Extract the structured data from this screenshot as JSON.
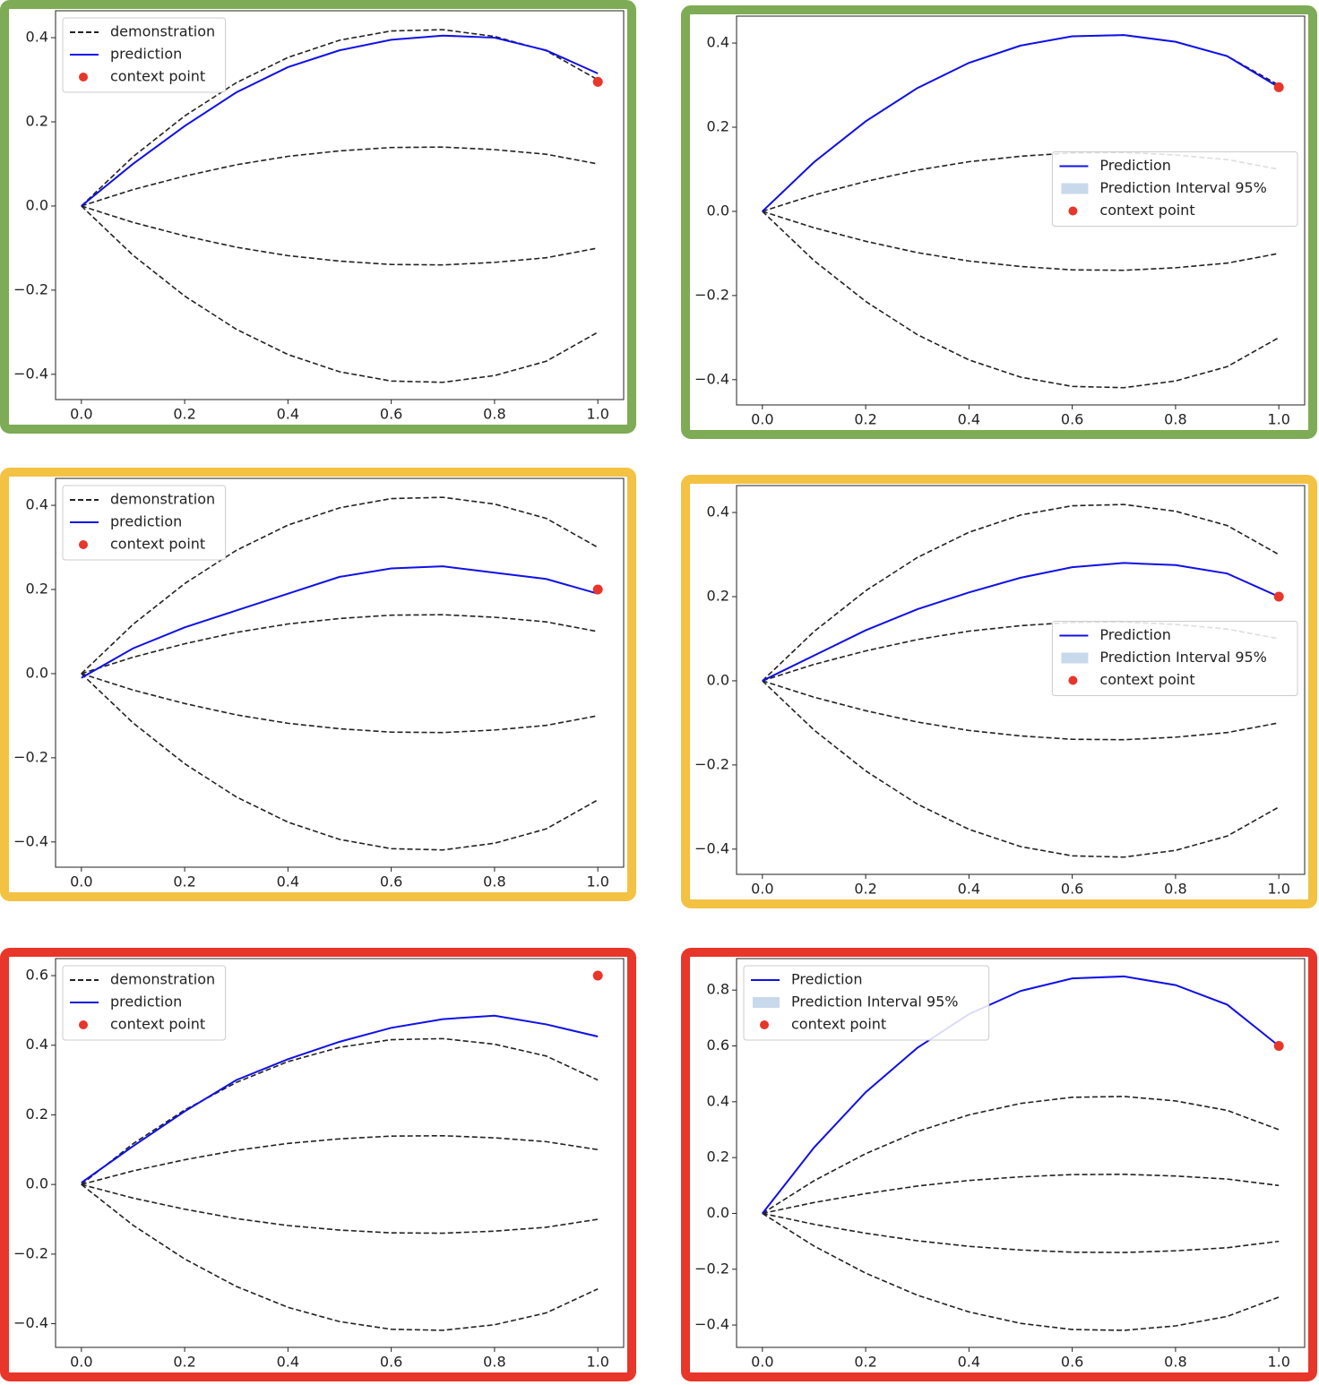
{
  "chart_data": [
    {
      "type": "line",
      "frame_color": "#7eab55",
      "legend": "upper left",
      "x": [
        0,
        0.1,
        0.2,
        0.3,
        0.4,
        0.5,
        0.6,
        0.7,
        0.8,
        0.9,
        1.0
      ],
      "xlim": [
        -0.05,
        1.05
      ],
      "ylim": [
        -0.46,
        0.464
      ],
      "xticks": [
        {
          "value": 0,
          "label": "0.0"
        },
        0.2,
        0.4,
        0.6,
        0.8,
        {
          "value": 1,
          "label": "1.0"
        }
      ],
      "yticks": [
        {
          "value": -0.4,
          "label": "−0.4"
        },
        {
          "value": -0.2,
          "label": "−0.2"
        },
        {
          "value": 0,
          "label": "0.0"
        },
        0.2,
        0.4
      ],
      "series": [
        {
          "name": "demonstration",
          "kind": "line",
          "linestyle": "dashed",
          "color": "#222222",
          "values": [
            0,
            0.117,
            0.214,
            0.293,
            0.353,
            0.394,
            0.416,
            0.419,
            0.403,
            0.369,
            0.3
          ]
        },
        {
          "kind": "line",
          "linestyle": "dashed",
          "color": "#222222",
          "values": [
            0,
            0.039,
            0.071,
            0.098,
            0.118,
            0.131,
            0.139,
            0.14,
            0.134,
            0.123,
            0.1
          ]
        },
        {
          "kind": "line",
          "linestyle": "dashed",
          "color": "#222222",
          "values": [
            0,
            -0.039,
            -0.071,
            -0.098,
            -0.118,
            -0.131,
            -0.139,
            -0.14,
            -0.134,
            -0.123,
            -0.1
          ]
        },
        {
          "kind": "line",
          "linestyle": "dashed",
          "color": "#222222",
          "values": [
            0,
            -0.117,
            -0.214,
            -0.293,
            -0.353,
            -0.394,
            -0.416,
            -0.419,
            -0.403,
            -0.369,
            -0.3
          ]
        },
        {
          "name": "prediction",
          "kind": "line",
          "color": "#1010e8",
          "values": [
            0,
            0.1,
            0.19,
            0.27,
            0.33,
            0.37,
            0.395,
            0.405,
            0.4,
            0.37,
            0.315
          ]
        },
        {
          "name": "context point",
          "kind": "scatter",
          "color": "#e8362a",
          "x": [
            1.0
          ],
          "values": [
            0.295
          ]
        }
      ]
    },
    {
      "type": "line",
      "frame_color": "#7eab55",
      "legend": "center right",
      "x": [
        0,
        0.1,
        0.2,
        0.3,
        0.4,
        0.5,
        0.6,
        0.7,
        0.8,
        0.9,
        1.0
      ],
      "xlim": [
        -0.05,
        1.05
      ],
      "ylim": [
        -0.46,
        0.464
      ],
      "xticks": [
        {
          "value": 0,
          "label": "0.0"
        },
        0.2,
        0.4,
        0.6,
        0.8,
        {
          "value": 1,
          "label": "1.0"
        }
      ],
      "yticks": [
        {
          "value": -0.4,
          "label": "−0.4"
        },
        {
          "value": -0.2,
          "label": "−0.2"
        },
        {
          "value": 0,
          "label": "0.0"
        },
        0.2,
        0.4
      ],
      "series": [
        {
          "kind": "line",
          "linestyle": "dashed",
          "color": "#222222",
          "values": [
            0,
            0.117,
            0.214,
            0.293,
            0.353,
            0.394,
            0.416,
            0.419,
            0.403,
            0.369,
            0.3
          ]
        },
        {
          "kind": "line",
          "linestyle": "dashed",
          "color": "#222222",
          "values": [
            0,
            0.039,
            0.071,
            0.098,
            0.118,
            0.131,
            0.139,
            0.14,
            0.134,
            0.123,
            0.1
          ]
        },
        {
          "kind": "line",
          "linestyle": "dashed",
          "color": "#222222",
          "values": [
            0,
            -0.039,
            -0.071,
            -0.098,
            -0.118,
            -0.131,
            -0.139,
            -0.14,
            -0.134,
            -0.123,
            -0.1
          ]
        },
        {
          "kind": "line",
          "linestyle": "dashed",
          "color": "#222222",
          "values": [
            0,
            -0.117,
            -0.214,
            -0.293,
            -0.353,
            -0.394,
            -0.416,
            -0.419,
            -0.403,
            -0.369,
            -0.3
          ]
        },
        {
          "name": "Prediction",
          "kind": "line",
          "color": "#1010e8",
          "values": [
            0,
            0.117,
            0.214,
            0.293,
            0.353,
            0.394,
            0.416,
            0.419,
            0.403,
            0.369,
            0.295
          ]
        },
        {
          "name": "Prediction Interval 95%",
          "kind": "band",
          "color": "#c9d9ec",
          "lower": [
            0,
            0.117,
            0.214,
            0.293,
            0.353,
            0.394,
            0.416,
            0.419,
            0.403,
            0.369,
            0.295
          ],
          "upper": [
            0,
            0.117,
            0.214,
            0.293,
            0.353,
            0.394,
            0.416,
            0.419,
            0.403,
            0.369,
            0.295
          ]
        },
        {
          "name": "context point",
          "kind": "scatter",
          "color": "#e8362a",
          "x": [
            1.0
          ],
          "values": [
            0.295
          ]
        }
      ]
    },
    {
      "type": "line",
      "frame_color": "#f4c242",
      "legend": "upper left",
      "x": [
        0,
        0.1,
        0.2,
        0.3,
        0.4,
        0.5,
        0.6,
        0.7,
        0.8,
        0.9,
        1.0
      ],
      "xlim": [
        -0.05,
        1.05
      ],
      "ylim": [
        -0.46,
        0.464
      ],
      "xticks": [
        {
          "value": 0,
          "label": "0.0"
        },
        0.2,
        0.4,
        0.6,
        0.8,
        {
          "value": 1,
          "label": "1.0"
        }
      ],
      "yticks": [
        {
          "value": -0.4,
          "label": "−0.4"
        },
        {
          "value": -0.2,
          "label": "−0.2"
        },
        {
          "value": 0,
          "label": "0.0"
        },
        0.2,
        0.4
      ],
      "series": [
        {
          "name": "demonstration",
          "kind": "line",
          "linestyle": "dashed",
          "color": "#222222",
          "values": [
            0,
            0.117,
            0.214,
            0.293,
            0.353,
            0.394,
            0.416,
            0.419,
            0.403,
            0.369,
            0.3
          ]
        },
        {
          "kind": "line",
          "linestyle": "dashed",
          "color": "#222222",
          "values": [
            0,
            0.039,
            0.071,
            0.098,
            0.118,
            0.131,
            0.139,
            0.14,
            0.134,
            0.123,
            0.1
          ]
        },
        {
          "kind": "line",
          "linestyle": "dashed",
          "color": "#222222",
          "values": [
            0,
            -0.039,
            -0.071,
            -0.098,
            -0.118,
            -0.131,
            -0.139,
            -0.14,
            -0.134,
            -0.123,
            -0.1
          ]
        },
        {
          "kind": "line",
          "linestyle": "dashed",
          "color": "#222222",
          "values": [
            0,
            -0.117,
            -0.214,
            -0.293,
            -0.353,
            -0.394,
            -0.416,
            -0.419,
            -0.403,
            -0.369,
            -0.3
          ]
        },
        {
          "name": "prediction",
          "kind": "line",
          "color": "#1010e8",
          "values": [
            -0.01,
            0.06,
            0.11,
            0.15,
            0.19,
            0.23,
            0.25,
            0.255,
            0.24,
            0.225,
            0.19
          ]
        },
        {
          "name": "context point",
          "kind": "scatter",
          "color": "#e8362a",
          "x": [
            1.0
          ],
          "values": [
            0.2
          ]
        }
      ]
    },
    {
      "type": "line",
      "frame_color": "#f4c242",
      "legend": "center right",
      "x": [
        0,
        0.1,
        0.2,
        0.3,
        0.4,
        0.5,
        0.6,
        0.7,
        0.8,
        0.9,
        1.0
      ],
      "xlim": [
        -0.05,
        1.05
      ],
      "ylim": [
        -0.46,
        0.464
      ],
      "xticks": [
        {
          "value": 0,
          "label": "0.0"
        },
        0.2,
        0.4,
        0.6,
        0.8,
        {
          "value": 1,
          "label": "1.0"
        }
      ],
      "yticks": [
        {
          "value": -0.4,
          "label": "−0.4"
        },
        {
          "value": -0.2,
          "label": "−0.2"
        },
        {
          "value": 0,
          "label": "0.0"
        },
        0.2,
        0.4
      ],
      "series": [
        {
          "kind": "line",
          "linestyle": "dashed",
          "color": "#222222",
          "values": [
            0,
            0.117,
            0.214,
            0.293,
            0.353,
            0.394,
            0.416,
            0.419,
            0.403,
            0.369,
            0.3
          ]
        },
        {
          "kind": "line",
          "linestyle": "dashed",
          "color": "#222222",
          "values": [
            0,
            0.039,
            0.071,
            0.098,
            0.118,
            0.131,
            0.139,
            0.14,
            0.134,
            0.123,
            0.1
          ]
        },
        {
          "kind": "line",
          "linestyle": "dashed",
          "color": "#222222",
          "values": [
            0,
            -0.039,
            -0.071,
            -0.098,
            -0.118,
            -0.131,
            -0.139,
            -0.14,
            -0.134,
            -0.123,
            -0.1
          ]
        },
        {
          "kind": "line",
          "linestyle": "dashed",
          "color": "#222222",
          "values": [
            0,
            -0.117,
            -0.214,
            -0.293,
            -0.353,
            -0.394,
            -0.416,
            -0.419,
            -0.403,
            -0.369,
            -0.3
          ]
        },
        {
          "name": "Prediction",
          "kind": "line",
          "color": "#1010e8",
          "values": [
            0,
            0.06,
            0.12,
            0.17,
            0.21,
            0.245,
            0.27,
            0.28,
            0.275,
            0.255,
            0.2
          ]
        },
        {
          "name": "Prediction Interval 95%",
          "kind": "band",
          "color": "#c9d9ec",
          "lower": [
            0,
            0.06,
            0.12,
            0.17,
            0.21,
            0.245,
            0.27,
            0.28,
            0.275,
            0.255,
            0.2
          ],
          "upper": [
            0,
            0.06,
            0.12,
            0.17,
            0.21,
            0.245,
            0.27,
            0.28,
            0.275,
            0.255,
            0.2
          ]
        },
        {
          "name": "context point",
          "kind": "scatter",
          "color": "#e8362a",
          "x": [
            1.0
          ],
          "values": [
            0.2
          ]
        }
      ]
    },
    {
      "type": "line",
      "frame_color": "#e8362a",
      "legend": "upper left",
      "x": [
        0,
        0.1,
        0.2,
        0.3,
        0.4,
        0.5,
        0.6,
        0.7,
        0.8,
        0.9,
        1.0
      ],
      "xlim": [
        -0.05,
        1.05
      ],
      "ylim": [
        -0.468,
        0.649
      ],
      "xticks": [
        {
          "value": 0,
          "label": "0.0"
        },
        0.2,
        0.4,
        0.6,
        0.8,
        {
          "value": 1,
          "label": "1.0"
        }
      ],
      "yticks": [
        {
          "value": -0.4,
          "label": "−0.4"
        },
        {
          "value": -0.2,
          "label": "−0.2"
        },
        {
          "value": 0,
          "label": "0.0"
        },
        0.2,
        0.4,
        0.6
      ],
      "series": [
        {
          "name": "demonstration",
          "kind": "line",
          "linestyle": "dashed",
          "color": "#222222",
          "values": [
            0,
            0.117,
            0.214,
            0.293,
            0.353,
            0.394,
            0.416,
            0.419,
            0.403,
            0.369,
            0.3
          ]
        },
        {
          "kind": "line",
          "linestyle": "dashed",
          "color": "#222222",
          "values": [
            0,
            0.039,
            0.071,
            0.098,
            0.118,
            0.131,
            0.139,
            0.14,
            0.134,
            0.123,
            0.1
          ]
        },
        {
          "kind": "line",
          "linestyle": "dashed",
          "color": "#222222",
          "values": [
            0,
            -0.039,
            -0.071,
            -0.098,
            -0.118,
            -0.131,
            -0.139,
            -0.14,
            -0.134,
            -0.123,
            -0.1
          ]
        },
        {
          "kind": "line",
          "linestyle": "dashed",
          "color": "#222222",
          "values": [
            0,
            -0.117,
            -0.214,
            -0.293,
            -0.353,
            -0.394,
            -0.416,
            -0.419,
            -0.403,
            -0.369,
            -0.3
          ]
        },
        {
          "name": "prediction",
          "kind": "line",
          "color": "#1010e8",
          "values": [
            0.005,
            0.11,
            0.21,
            0.3,
            0.36,
            0.41,
            0.45,
            0.475,
            0.485,
            0.46,
            0.425
          ]
        },
        {
          "name": "context point",
          "kind": "scatter",
          "color": "#e8362a",
          "x": [
            1.0
          ],
          "values": [
            0.6
          ]
        }
      ]
    },
    {
      "type": "line",
      "frame_color": "#e8362a",
      "legend": "upper left",
      "x": [
        0,
        0.1,
        0.2,
        0.3,
        0.4,
        0.5,
        0.6,
        0.7,
        0.8,
        0.9,
        1.0
      ],
      "xlim": [
        -0.05,
        1.05
      ],
      "ylim": [
        -0.48,
        0.913
      ],
      "xticks": [
        {
          "value": 0,
          "label": "0.0"
        },
        0.2,
        0.4,
        0.6,
        0.8,
        {
          "value": 1,
          "label": "1.0"
        }
      ],
      "yticks": [
        {
          "value": -0.4,
          "label": "−0.4"
        },
        {
          "value": -0.2,
          "label": "−0.2"
        },
        {
          "value": 0,
          "label": "0.0"
        },
        0.2,
        0.4,
        0.6,
        0.8
      ],
      "series": [
        {
          "kind": "line",
          "linestyle": "dashed",
          "color": "#222222",
          "values": [
            0,
            0.117,
            0.214,
            0.293,
            0.353,
            0.394,
            0.416,
            0.419,
            0.403,
            0.369,
            0.3
          ]
        },
        {
          "kind": "line",
          "linestyle": "dashed",
          "color": "#222222",
          "values": [
            0,
            0.039,
            0.071,
            0.098,
            0.118,
            0.131,
            0.139,
            0.14,
            0.134,
            0.123,
            0.1
          ]
        },
        {
          "kind": "line",
          "linestyle": "dashed",
          "color": "#222222",
          "values": [
            0,
            -0.039,
            -0.071,
            -0.098,
            -0.118,
            -0.131,
            -0.139,
            -0.14,
            -0.134,
            -0.123,
            -0.1
          ]
        },
        {
          "kind": "line",
          "linestyle": "dashed",
          "color": "#222222",
          "values": [
            0,
            -0.117,
            -0.214,
            -0.293,
            -0.353,
            -0.394,
            -0.416,
            -0.419,
            -0.403,
            -0.369,
            -0.3
          ]
        },
        {
          "name": "Prediction",
          "kind": "line",
          "color": "#1010e8",
          "values": [
            0,
            0.236,
            0.434,
            0.593,
            0.714,
            0.797,
            0.842,
            0.849,
            0.818,
            0.748,
            0.6
          ]
        },
        {
          "name": "Prediction Interval 95%",
          "kind": "band",
          "color": "#c9d9ec",
          "lower": [
            0,
            0.236,
            0.434,
            0.593,
            0.714,
            0.797,
            0.842,
            0.849,
            0.818,
            0.748,
            0.6
          ],
          "upper": [
            0,
            0.236,
            0.434,
            0.593,
            0.714,
            0.797,
            0.842,
            0.849,
            0.818,
            0.748,
            0.6
          ]
        },
        {
          "name": "context point",
          "kind": "scatter",
          "color": "#e8362a",
          "x": [
            1.0
          ],
          "values": [
            0.6
          ]
        }
      ]
    }
  ]
}
